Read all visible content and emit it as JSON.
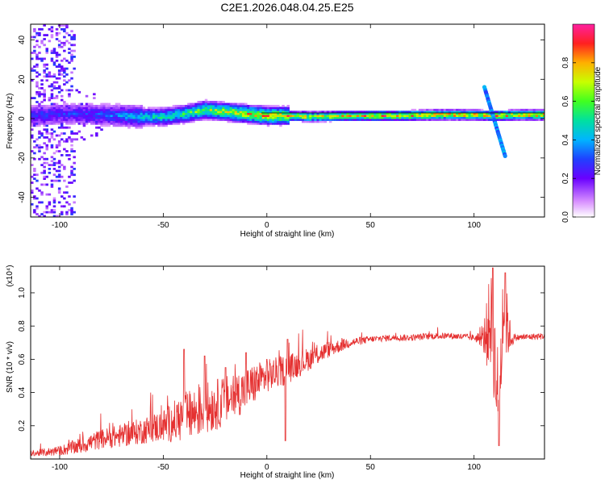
{
  "title": "C2E1.2026.048.04.25.E25",
  "chart_data": [
    {
      "type": "heatmap",
      "xlabel": "Height of straight line (km)",
      "ylabel": "Frequency (Hz)",
      "xlim": [
        -114,
        134
      ],
      "ylim": [
        -50,
        48
      ],
      "x_ticks": [
        -100,
        -50,
        0,
        50,
        100
      ],
      "y_ticks": [
        -40,
        -20,
        0,
        20,
        40
      ],
      "colorbar": {
        "label": "Normalized spectral amplitude",
        "range": [
          0,
          1
        ],
        "ticks": [
          0.0,
          0.2,
          0.4,
          0.6,
          0.8
        ],
        "tick_labels": [
          "0.0",
          "0.2",
          "0.4",
          "0.6",
          "0.8"
        ]
      },
      "ridge": {
        "x": [
          -114,
          -100,
          -90,
          -80,
          -70,
          -60,
          -50,
          -40,
          -30,
          -20,
          -10,
          0,
          10,
          20,
          40,
          60,
          80,
          100,
          110,
          120,
          134
        ],
        "freq": [
          1,
          2,
          2,
          1.5,
          1,
          0.5,
          0.5,
          2,
          4,
          3,
          2,
          1,
          1,
          0.5,
          1,
          1,
          1.5,
          1.5,
          1,
          1.5,
          1.5
        ],
        "amplitude": [
          0.3,
          0.3,
          0.3,
          0.35,
          0.4,
          0.5,
          0.55,
          0.6,
          0.7,
          0.75,
          0.8,
          0.85,
          0.85,
          0.8,
          0.8,
          0.85,
          0.9,
          0.9,
          0.85,
          0.9,
          0.9
        ]
      },
      "streak": {
        "x_start": 105,
        "f_start": 16,
        "x_end": 115,
        "f_end": -19
      }
    },
    {
      "type": "line",
      "xlabel": "Height of straight line (km)",
      "ylabel": "SNR (10 * v/v)",
      "y_multiplier": "(x10⁴)",
      "xlim": [
        -114,
        134
      ],
      "ylim": [
        0,
        1.16
      ],
      "x_ticks": [
        -100,
        -50,
        0,
        50,
        100
      ],
      "y_ticks": [
        0.2,
        0.4,
        0.6,
        0.8,
        1.0
      ],
      "envelope": {
        "x": [
          -114,
          -100,
          -90,
          -80,
          -70,
          -60,
          -50,
          -40,
          -30,
          -20,
          -10,
          -5,
          0,
          10,
          20,
          30,
          40,
          50,
          60,
          70,
          80,
          90,
          100,
          104,
          106,
          108,
          110,
          112,
          114,
          116,
          118,
          120,
          134
        ],
        "mean": [
          0.03,
          0.05,
          0.08,
          0.12,
          0.14,
          0.17,
          0.2,
          0.25,
          0.3,
          0.35,
          0.42,
          0.46,
          0.5,
          0.54,
          0.6,
          0.66,
          0.7,
          0.72,
          0.73,
          0.73,
          0.74,
          0.74,
          0.73,
          0.72,
          0.75,
          0.85,
          0.6,
          0.3,
          0.9,
          0.8,
          0.72,
          0.73,
          0.74
        ],
        "spread": [
          0.02,
          0.03,
          0.05,
          0.06,
          0.07,
          0.08,
          0.1,
          0.15,
          0.16,
          0.15,
          0.13,
          0.12,
          0.1,
          0.09,
          0.07,
          0.05,
          0.03,
          0.02,
          0.02,
          0.02,
          0.02,
          0.02,
          0.02,
          0.05,
          0.2,
          0.3,
          0.3,
          0.3,
          0.25,
          0.2,
          0.05,
          0.02,
          0.02
        ]
      },
      "spikes": [
        {
          "x": -40,
          "y": 0.66
        },
        {
          "x": -30,
          "y": 0.62
        },
        {
          "x": -20,
          "y": 0.55
        },
        {
          "x": -10,
          "y": 0.64
        },
        {
          "x": 0,
          "y": 0.6
        },
        {
          "x": 9,
          "y": 0.11
        },
        {
          "x": 10,
          "y": 0.72
        },
        {
          "x": 109,
          "y": 1.15
        },
        {
          "x": 112,
          "y": 0.08
        },
        {
          "x": 115,
          "y": 1.12
        }
      ],
      "color": "#e53030"
    }
  ]
}
